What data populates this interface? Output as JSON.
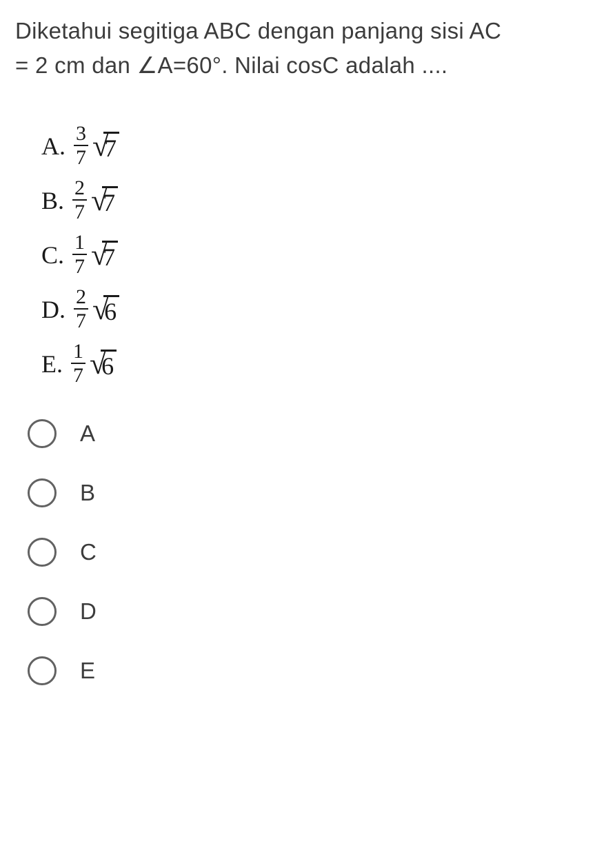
{
  "question": {
    "line1": "Diketahui segitiga ABC dengan panjang sisi AC",
    "line2": "= 2 cm dan ∠A=60°. Nilai cosC adalah ...."
  },
  "answers": [
    {
      "letter": "A.",
      "num": "3",
      "den": "7",
      "radicand": "7"
    },
    {
      "letter": "B.",
      "num": "2",
      "den": "7",
      "radicand": "7"
    },
    {
      "letter": "C.",
      "num": "1",
      "den": "7",
      "radicand": "7"
    },
    {
      "letter": "D.",
      "num": "2",
      "den": "7",
      "radicand": "6"
    },
    {
      "letter": "E.",
      "num": "1",
      "den": "7",
      "radicand": "6"
    }
  ],
  "radios": [
    {
      "label": "A"
    },
    {
      "label": "B"
    },
    {
      "label": "C"
    },
    {
      "label": "D"
    },
    {
      "label": "E"
    }
  ],
  "colors": {
    "text": "#3c3c3c",
    "math": "#1a1a1a",
    "radio_border": "#626262",
    "background": "#ffffff"
  },
  "typography": {
    "question_fontsize": 33,
    "math_fontsize": 36,
    "radio_label_fontsize": 33
  }
}
